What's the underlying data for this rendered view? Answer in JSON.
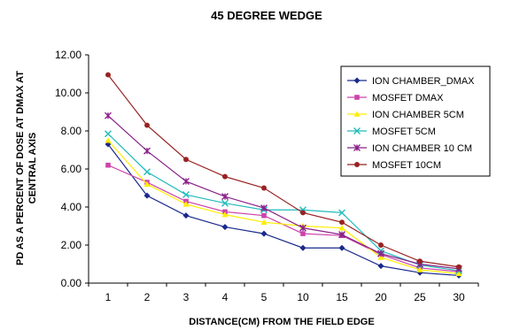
{
  "chart_data": {
    "type": "line",
    "title": "45 DEGREE WEDGE",
    "xlabel": "DISTANCE(CM) FROM THE FIELD EDGE",
    "ylabel_lines": [
      "PD AS A PERCENT OF DOSE AT DMAX AT",
      "CENTRAL  AXIS"
    ],
    "categories": [
      "1",
      "2",
      "3",
      "4",
      "5",
      "10",
      "15",
      "20",
      "25",
      "30"
    ],
    "ylim": [
      0,
      12
    ],
    "yticks": [
      "0.00",
      "2.00",
      "4.00",
      "6.00",
      "8.00",
      "10.00",
      "12.00"
    ],
    "grid": false,
    "legend_position": "top-right",
    "series": [
      {
        "name": "ION CHAMBER_DMAX",
        "color": "#1a2a8c",
        "marker": "diamond",
        "values": [
          7.3,
          4.6,
          3.55,
          2.95,
          2.6,
          1.85,
          1.85,
          0.9,
          0.55,
          0.4
        ]
      },
      {
        "name": "MOSFET DMAX",
        "color": "#cc44aa",
        "marker": "square",
        "values": [
          6.2,
          5.3,
          4.3,
          3.75,
          3.55,
          2.6,
          2.5,
          1.5,
          0.8,
          0.6
        ]
      },
      {
        "name": "ION CHAMBER 5CM",
        "color": "#ffee00",
        "marker": "triangle",
        "values": [
          7.5,
          5.2,
          4.15,
          3.6,
          3.2,
          3.0,
          2.9,
          1.35,
          0.7,
          0.5
        ]
      },
      {
        "name": "MOSFET 5CM",
        "color": "#22bbbb",
        "marker": "x",
        "values": [
          7.85,
          5.85,
          4.65,
          4.2,
          3.85,
          3.85,
          3.7,
          1.7,
          0.95,
          0.65
        ]
      },
      {
        "name": "ION CHAMBER 10 CM",
        "color": "#882288",
        "marker": "star",
        "values": [
          8.8,
          6.95,
          5.35,
          4.55,
          3.95,
          2.9,
          2.55,
          1.55,
          1.0,
          0.75
        ]
      },
      {
        "name": "MOSFET 10CM",
        "color": "#992222",
        "marker": "circle",
        "values": [
          10.95,
          8.3,
          6.5,
          5.6,
          5.0,
          3.7,
          3.2,
          2.0,
          1.15,
          0.85
        ]
      }
    ]
  }
}
